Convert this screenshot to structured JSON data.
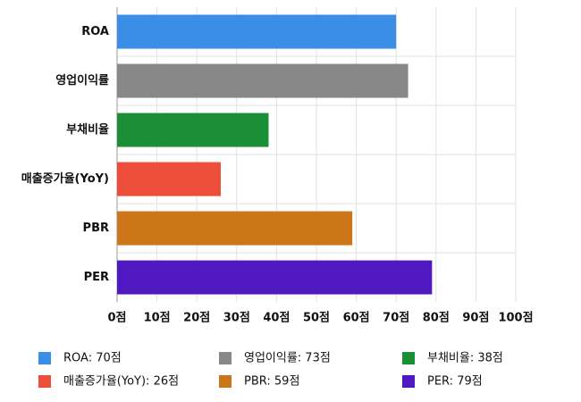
{
  "chart_data": {
    "type": "bar",
    "orientation": "horizontal",
    "categories": [
      "ROA",
      "영업이익률",
      "부채비율",
      "매출증가율(YoY)",
      "PBR",
      "PER"
    ],
    "values": [
      70,
      73,
      38,
      26,
      59,
      79
    ],
    "colors": [
      "#3a8ee6",
      "#888888",
      "#1a8f36",
      "#ec4e3a",
      "#cd7619",
      "#5018c0"
    ],
    "legend_labels": [
      "ROA: 70점",
      "영업이익률: 73점",
      "부채비율: 38점",
      "매출증가율(YoY): 26점",
      "PBR: 59점",
      "PER: 79점"
    ],
    "xlim": [
      0,
      100
    ],
    "xticks": [
      {
        "value": 0,
        "label": "0점"
      },
      {
        "value": 10,
        "label": "10점"
      },
      {
        "value": 20,
        "label": "20점"
      },
      {
        "value": 30,
        "label": "30점"
      },
      {
        "value": 40,
        "label": "40점"
      },
      {
        "value": 50,
        "label": "50점"
      },
      {
        "value": 60,
        "label": "60점"
      },
      {
        "value": 70,
        "label": "70점"
      },
      {
        "value": 80,
        "label": "80점"
      },
      {
        "value": 90,
        "label": "90점"
      },
      {
        "value": 100,
        "label": "100점"
      }
    ],
    "grid": true
  }
}
